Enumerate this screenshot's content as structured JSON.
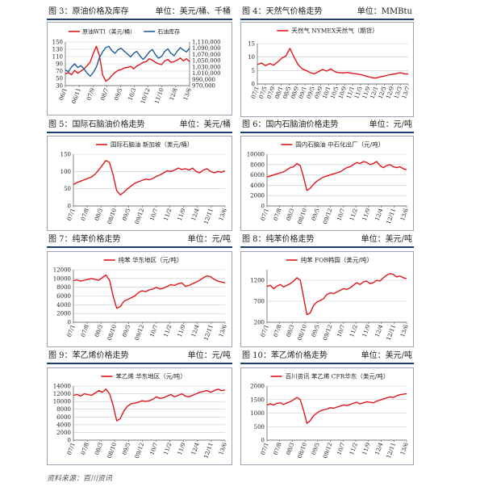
{
  "source_note": "资料来源：百川资讯",
  "charts": [
    {
      "caption": "图 3：原油价格及库存",
      "unit": "单位：美元/桶、千桶",
      "chart_data": {
        "type": "line",
        "x_labels": [
          "06/1",
          "06/11",
          "07/9",
          "08/7",
          "09/5",
          "10/3",
          "10/12",
          "11/10",
          "12/8",
          "13/6"
        ],
        "legend": [
          "原油WTI（美元/桶）",
          "石油库存"
        ],
        "left_axis": {
          "ticks": [
            "150",
            "130",
            "110",
            "90",
            "70",
            "50",
            "30"
          ],
          "ylim": [
            30,
            150
          ]
        },
        "right_axis": {
          "ticks": [
            "1,110,000",
            "1,090,000",
            "1,070,000",
            "1,050,000",
            "1,030,000",
            "1,010,000",
            "990,000",
            "970,000"
          ],
          "ylim": [
            970000,
            1110000
          ]
        },
        "series": [
          {
            "name": "原油WTI（美元/桶）",
            "axis": "left",
            "color": "#e0161b",
            "values": [
              62,
              66,
              60,
              72,
              64,
              70,
              76,
              85,
              95,
              118,
              138,
              112,
              60,
              42,
              48,
              58,
              66,
              72,
              74,
              79,
              80,
              83,
              76,
              84,
              88,
              94,
              96,
              104,
              100,
              94,
              90,
              88,
              98,
              102,
              94,
              96,
              100,
              106,
              98,
              104,
              96
            ]
          },
          {
            "name": "石油库存",
            "axis": "right",
            "color": "#1d5d9b",
            "values": [
              1020000,
              1015000,
              1030000,
              1040000,
              1028000,
              1034000,
              1024000,
              1010000,
              1000000,
              1012000,
              1030000,
              1060000,
              1078000,
              1092000,
              1096000,
              1082000,
              1074000,
              1086000,
              1090000,
              1080000,
              1072000,
              1062000,
              1074000,
              1080000,
              1066000,
              1054000,
              1064000,
              1078000,
              1086000,
              1070000,
              1058000,
              1064000,
              1080000,
              1088000,
              1074000,
              1066000,
              1080000,
              1092000,
              1084000,
              1078000,
              1090000
            ]
          }
        ]
      }
    },
    {
      "caption": "图 4：天然气价格走势",
      "unit": "单位：MMBtu",
      "chart_data": {
        "type": "line",
        "title": "天然气 NYMEX天然气（期货）",
        "x_labels": [
          "07/1",
          "07/5",
          "07/9",
          "08/1",
          "08/5",
          "08/9",
          "09/1",
          "09/5",
          "09/9",
          "10/1",
          "10/5",
          "10/9",
          "11/1",
          "11/5",
          "11/9",
          "12/1",
          "12/5",
          "12/9",
          "13/3",
          "13/7"
        ],
        "y_ticks": [
          "15",
          "10",
          "5",
          "0"
        ],
        "ylim": [
          0,
          15
        ],
        "series": [
          {
            "name": "天然气 NYMEX天然气（期货）",
            "color": "#e0161b",
            "values": [
              7.2,
              7.8,
              6.8,
              7.6,
              7.0,
              8.2,
              9.6,
              10.4,
              13.2,
              10.0,
              7.2,
              5.6,
              5.0,
              4.2,
              3.8,
              4.6,
              5.4,
              4.8,
              5.6,
              4.6,
              4.2,
              4.1,
              4.3,
              4.0,
              3.8,
              3.6,
              3.2,
              2.8,
              2.4,
              2.2,
              2.6,
              2.9,
              3.3,
              3.6,
              3.8,
              4.2,
              3.8,
              3.7
            ]
          }
        ]
      }
    },
    {
      "caption": "图 5：国际石脑油价格走势",
      "unit": "单位：美元/桶",
      "chart_data": {
        "type": "line",
        "title": "国际石脑油 新加坡（美元/桶）",
        "x_labels": [
          "07/1",
          "07/8",
          "08/3",
          "08/10",
          "09/5",
          "09/12",
          "10/7",
          "11/2",
          "11/9",
          "12/4",
          "12/11",
          "13/6"
        ],
        "y_ticks": [
          "150",
          "100",
          "50",
          "0"
        ],
        "ylim": [
          0,
          150
        ],
        "series": [
          {
            "name": "国际石脑油 新加坡（美元/桶）",
            "color": "#e0161b",
            "values": [
              62,
              68,
              72,
              76,
              80,
              84,
              92,
              104,
              118,
              132,
              126,
              90,
              44,
              32,
              40,
              50,
              58,
              66,
              70,
              74,
              78,
              76,
              80,
              86,
              90,
              96,
              102,
              100,
              104,
              110,
              106,
              108,
              104,
              110,
              100,
              96,
              104,
              108,
              100,
              96,
              100,
              98,
              102
            ]
          }
        ]
      }
    },
    {
      "caption": "图 6：国内石脑油价格走势",
      "unit": "单位：元/吨",
      "chart_data": {
        "type": "line",
        "title": "国内石脑油 中石化出厂（元/吨）",
        "x_labels": [
          "07/1",
          "07/8",
          "08/3",
          "08/10",
          "09/5",
          "09/12",
          "10/7",
          "11/2",
          "11/9",
          "12/4",
          "12/11",
          "13/6"
        ],
        "y_ticks": [
          "10000",
          "8000",
          "6000",
          "4000",
          "2000",
          "0"
        ],
        "ylim": [
          0,
          10000
        ],
        "series": [
          {
            "name": "国内石脑油 中石化出厂（元/吨）",
            "color": "#e0161b",
            "values": [
              5600,
              5800,
              6000,
              6200,
              6400,
              6600,
              7000,
              7400,
              7600,
              8200,
              7800,
              5600,
              3000,
              3400,
              4200,
              4800,
              5200,
              5600,
              5800,
              6000,
              6200,
              6400,
              6600,
              7000,
              7400,
              7600,
              8000,
              8400,
              8200,
              8600,
              8400,
              8000,
              8200,
              8600,
              7800,
              7400,
              7800,
              8000,
              7600,
              7400,
              7600,
              7200,
              7000
            ]
          }
        ]
      }
    },
    {
      "caption": "图 7：纯苯价格走势",
      "unit": "单位：元/吨",
      "chart_data": {
        "type": "line",
        "title": "纯苯 华东地区（元/吨）",
        "x_labels": [
          "07/1",
          "07/8",
          "08/3",
          "08/10",
          "09/5",
          "09/12",
          "10/7",
          "11/2",
          "11/9",
          "12/4",
          "12/11",
          "13/6"
        ],
        "y_ticks": [
          "12000",
          "10000",
          "8000",
          "6000",
          "4000",
          "2000",
          "0"
        ],
        "ylim": [
          0,
          12000
        ],
        "series": [
          {
            "name": "纯苯 华东地区（元/吨）",
            "color": "#e0161b",
            "values": [
              9500,
              9700,
              9400,
              9600,
              9800,
              10000,
              9800,
              9600,
              10200,
              10800,
              9600,
              6000,
              3200,
              3600,
              4800,
              5200,
              5600,
              6000,
              6800,
              7200,
              7000,
              7400,
              7600,
              8000,
              7600,
              7800,
              8200,
              8600,
              8400,
              8800,
              9000,
              8200,
              8400,
              8800,
              9200,
              9600,
              10200,
              10600,
              10400,
              9800,
              9400,
              9200,
              9000
            ]
          }
        ]
      }
    },
    {
      "caption": "图 8：纯苯价格走势",
      "unit": "单位：美元/吨",
      "chart_data": {
        "type": "line",
        "title": "纯苯 FOB韩国（美元/吨）",
        "x_labels": [
          "07/1",
          "07/8",
          "08/3",
          "08/10",
          "09/5",
          "09/12",
          "10/7",
          "11/2",
          "11/9",
          "12/4",
          "12/11",
          "13/6"
        ],
        "y_ticks": [
          "1200",
          "700",
          "200"
        ],
        "ylim": [
          200,
          1450
        ],
        "series": [
          {
            "name": "纯苯 FOB韩国（美元/吨）",
            "color": "#e0161b",
            "values": [
              1050,
              1080,
              1000,
              1060,
              1100,
              1040,
              1080,
              1120,
              1180,
              1260,
              1200,
              800,
              380,
              420,
              600,
              680,
              720,
              760,
              860,
              900,
              880,
              920,
              960,
              1000,
              980,
              1020,
              1080,
              1140,
              1100,
              1160,
              1180,
              1120,
              1140,
              1200,
              1180,
              1260,
              1320,
              1360,
              1340,
              1280,
              1300,
              1260,
              1240
            ]
          }
        ]
      }
    },
    {
      "caption": "图 9：苯乙烯价格走势",
      "unit": "单位：元/吨",
      "chart_data": {
        "type": "line",
        "title": "苯乙烯 华东地区（元/吨）",
        "x_labels": [
          "07/1",
          "07/8",
          "08/3",
          "08/10",
          "09/5",
          "09/12",
          "10/7",
          "11/2",
          "11/9",
          "12/4",
          "12/11",
          "13/6"
        ],
        "y_ticks": [
          "14000",
          "12000",
          "10000",
          "8000",
          "6000",
          "4000",
          "2000",
          "0"
        ],
        "ylim": [
          0,
          14000
        ],
        "series": [
          {
            "name": "苯乙烯 华东地区（元/吨）",
            "color": "#e0161b",
            "values": [
              11600,
              11800,
              11400,
              12000,
              11800,
              11600,
              12200,
              12800,
              12400,
              13200,
              12000,
              9000,
              5000,
              5600,
              7600,
              8800,
              9400,
              9600,
              9800,
              10200,
              10000,
              10200,
              10600,
              11200,
              10800,
              11000,
              11400,
              11800,
              11200,
              11600,
              12000,
              11400,
              11200,
              11600,
              12000,
              12400,
              12600,
              12800,
              12400,
              12800,
              13200,
              12800,
              13000
            ]
          }
        ]
      }
    },
    {
      "caption": "图 10：苯乙烯价格走势",
      "unit": "单位：美元/吨",
      "chart_data": {
        "type": "line",
        "title": "百川资讯 苯乙烯 CFR华东（美元/吨）",
        "x_labels": [
          "07/1",
          "07/8",
          "08/3",
          "08/10",
          "09/5",
          "09/12",
          "10/7",
          "11/2",
          "11/9",
          "12/4",
          "12/11",
          "13/6"
        ],
        "y_ticks": [
          "2000",
          "1500",
          "1000",
          "500",
          "0"
        ],
        "ylim": [
          0,
          2000
        ],
        "series": [
          {
            "name": "百川资讯 苯乙烯 CFR华东（美元/吨）",
            "color": "#e0161b",
            "values": [
              1300,
              1340,
              1300,
              1360,
              1380,
              1320,
              1380,
              1420,
              1500,
              1580,
              1500,
              1100,
              620,
              720,
              900,
              1000,
              1080,
              1120,
              1150,
              1200,
              1180,
              1220,
              1260,
              1300,
              1280,
              1320,
              1360,
              1400,
              1340,
              1380,
              1420,
              1400,
              1380,
              1440,
              1480,
              1520,
              1560,
              1600,
              1580,
              1640,
              1680,
              1700,
              1720
            ]
          }
        ]
      }
    }
  ]
}
